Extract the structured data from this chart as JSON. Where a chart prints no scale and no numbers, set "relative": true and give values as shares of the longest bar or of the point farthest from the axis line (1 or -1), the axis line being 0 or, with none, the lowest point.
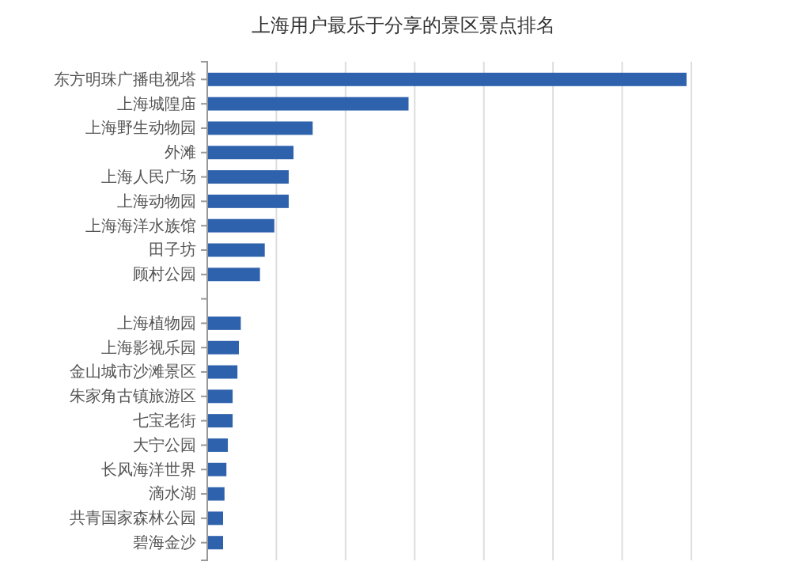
{
  "chart_data": {
    "type": "bar",
    "orientation": "horizontal",
    "relative": true,
    "grid": "x",
    "title": "上海用户最乐于分享的景区景点排名",
    "categories": [
      "东方明珠广播电视塔",
      "上海城隍庙",
      "上海野生动物园",
      "外滩",
      "上海人民广场",
      "上海动物园",
      "上海海洋水族馆",
      "田子坊",
      "顾村公园",
      null,
      "上海植物园",
      "上海影视乐园",
      "金山城市沙滩景区",
      "朱家角古镇旅游区",
      "七宝老街",
      "大宁公园",
      "长风海洋世界",
      "滴水湖",
      "共青国家森林公园",
      "碧海金沙"
    ],
    "values": [
      1,
      0.42,
      0.22,
      0.18,
      0.17,
      0.17,
      0.14,
      0.12,
      0.11,
      null,
      0.07,
      0.066,
      0.063,
      0.053,
      0.053,
      0.043,
      0.04,
      0.036,
      0.033,
      0.033
    ],
    "color": "#2f62ad"
  }
}
